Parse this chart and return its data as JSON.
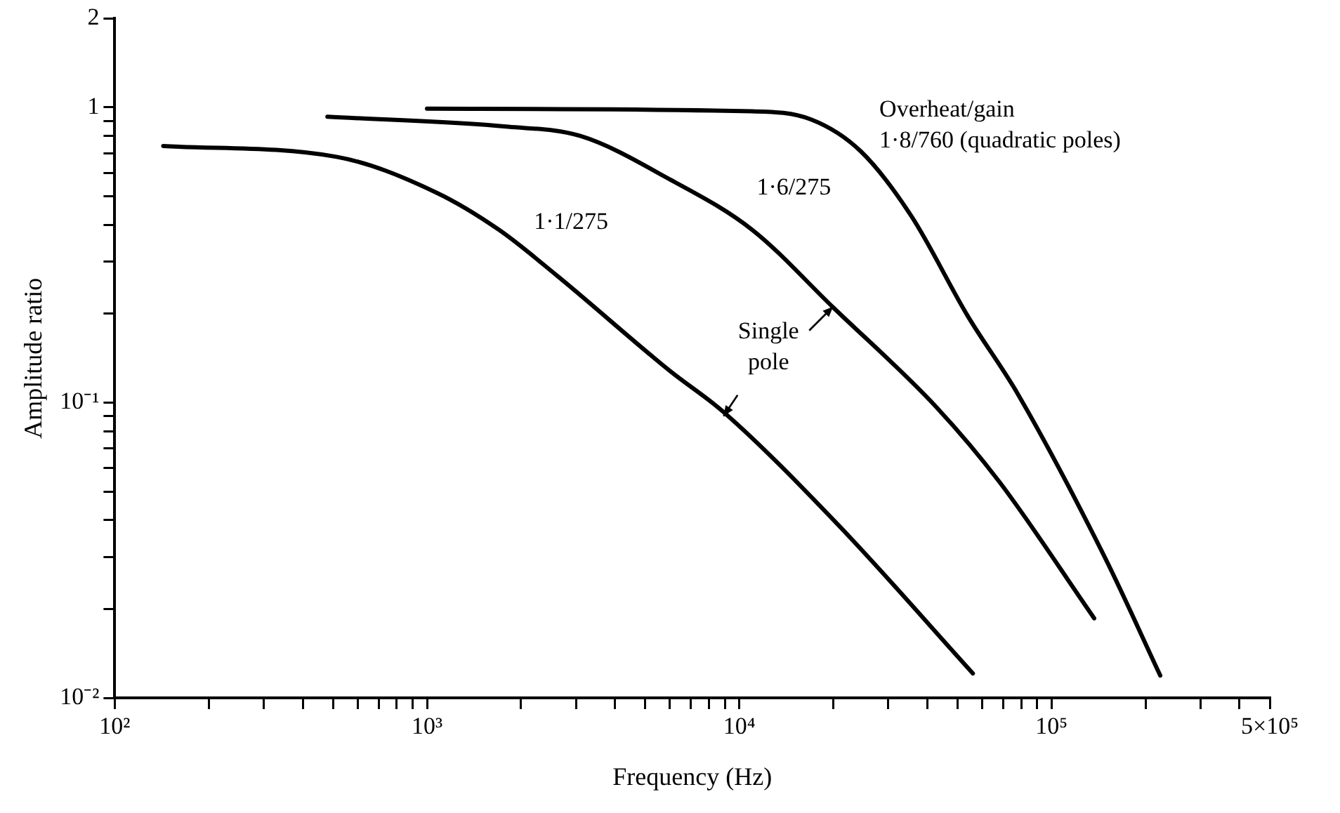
{
  "chart_data": {
    "type": "line",
    "xlabel": "Frequency (Hz)",
    "ylabel": "Amplitude ratio",
    "log": "xy",
    "grid": false,
    "legend": false,
    "marker": "none",
    "line_style": "solid",
    "xlim": [
      100,
      500000
    ],
    "ylim": [
      0.01,
      2
    ],
    "xticks": [
      {
        "value": 100,
        "label": "10²"
      },
      {
        "value": 200,
        "label": null
      },
      {
        "value": 300,
        "label": null
      },
      {
        "value": 400,
        "label": null
      },
      {
        "value": 500,
        "label": null
      },
      {
        "value": 600,
        "label": null
      },
      {
        "value": 700,
        "label": null
      },
      {
        "value": 800,
        "label": null
      },
      {
        "value": 900,
        "label": null
      },
      {
        "value": 1000,
        "label": "10³"
      },
      {
        "value": 2000,
        "label": null
      },
      {
        "value": 3000,
        "label": null
      },
      {
        "value": 4000,
        "label": null
      },
      {
        "value": 5000,
        "label": null
      },
      {
        "value": 6000,
        "label": null
      },
      {
        "value": 7000,
        "label": null
      },
      {
        "value": 8000,
        "label": null
      },
      {
        "value": 9000,
        "label": null
      },
      {
        "value": 10000,
        "label": "10⁴"
      },
      {
        "value": 20000,
        "label": null
      },
      {
        "value": 30000,
        "label": null
      },
      {
        "value": 40000,
        "label": null
      },
      {
        "value": 50000,
        "label": null
      },
      {
        "value": 60000,
        "label": null
      },
      {
        "value": 70000,
        "label": null
      },
      {
        "value": 80000,
        "label": null
      },
      {
        "value": 90000,
        "label": null
      },
      {
        "value": 100000,
        "label": "10⁵"
      },
      {
        "value": 200000,
        "label": null
      },
      {
        "value": 300000,
        "label": null
      },
      {
        "value": 400000,
        "label": null
      },
      {
        "value": 500000,
        "label": "5×10⁵"
      }
    ],
    "yticks": [
      {
        "value": 0.01,
        "label": "10⁻²"
      },
      {
        "value": 0.02,
        "label": null
      },
      {
        "value": 0.03,
        "label": null
      },
      {
        "value": 0.04,
        "label": null
      },
      {
        "value": 0.05,
        "label": null
      },
      {
        "value": 0.06,
        "label": null
      },
      {
        "value": 0.07,
        "label": null
      },
      {
        "value": 0.08,
        "label": null
      },
      {
        "value": 0.09,
        "label": null
      },
      {
        "value": 0.1,
        "label": "10⁻¹"
      },
      {
        "value": 0.2,
        "label": null
      },
      {
        "value": 0.3,
        "label": null
      },
      {
        "value": 0.4,
        "label": null
      },
      {
        "value": 0.5,
        "label": null
      },
      {
        "value": 0.6,
        "label": null
      },
      {
        "value": 0.7,
        "label": null
      },
      {
        "value": 0.8,
        "label": null
      },
      {
        "value": 0.9,
        "label": null
      },
      1,
      2
    ],
    "series": [
      {
        "name": "1·1/275",
        "color": "#000000",
        "x": [
          143,
          513,
          1070,
          1700,
          2600,
          6000,
          8900,
          21000,
          56000
        ],
        "values": [
          0.74,
          0.68,
          0.515,
          0.385,
          0.27,
          0.128,
          0.093,
          0.038,
          0.0121
        ]
      },
      {
        "name": "1·6/275",
        "color": "#000000",
        "x": [
          480,
          1820,
          3100,
          6000,
          11000,
          20000,
          43000,
          68000,
          137000
        ],
        "values": [
          0.93,
          0.86,
          0.8,
          0.57,
          0.385,
          0.21,
          0.096,
          0.054,
          0.0186
        ]
      },
      {
        "name": "Overheat/gain\n1·8/760 (quadratic poles)",
        "color": "#000000",
        "x": [
          1000,
          11000,
          17000,
          24500,
          35500,
          54000,
          78000,
          148000,
          223000
        ],
        "values": [
          0.99,
          0.97,
          0.91,
          0.71,
          0.43,
          0.196,
          0.107,
          0.03,
          0.0119
        ]
      }
    ],
    "annotations": [
      "Single\npole"
    ]
  }
}
